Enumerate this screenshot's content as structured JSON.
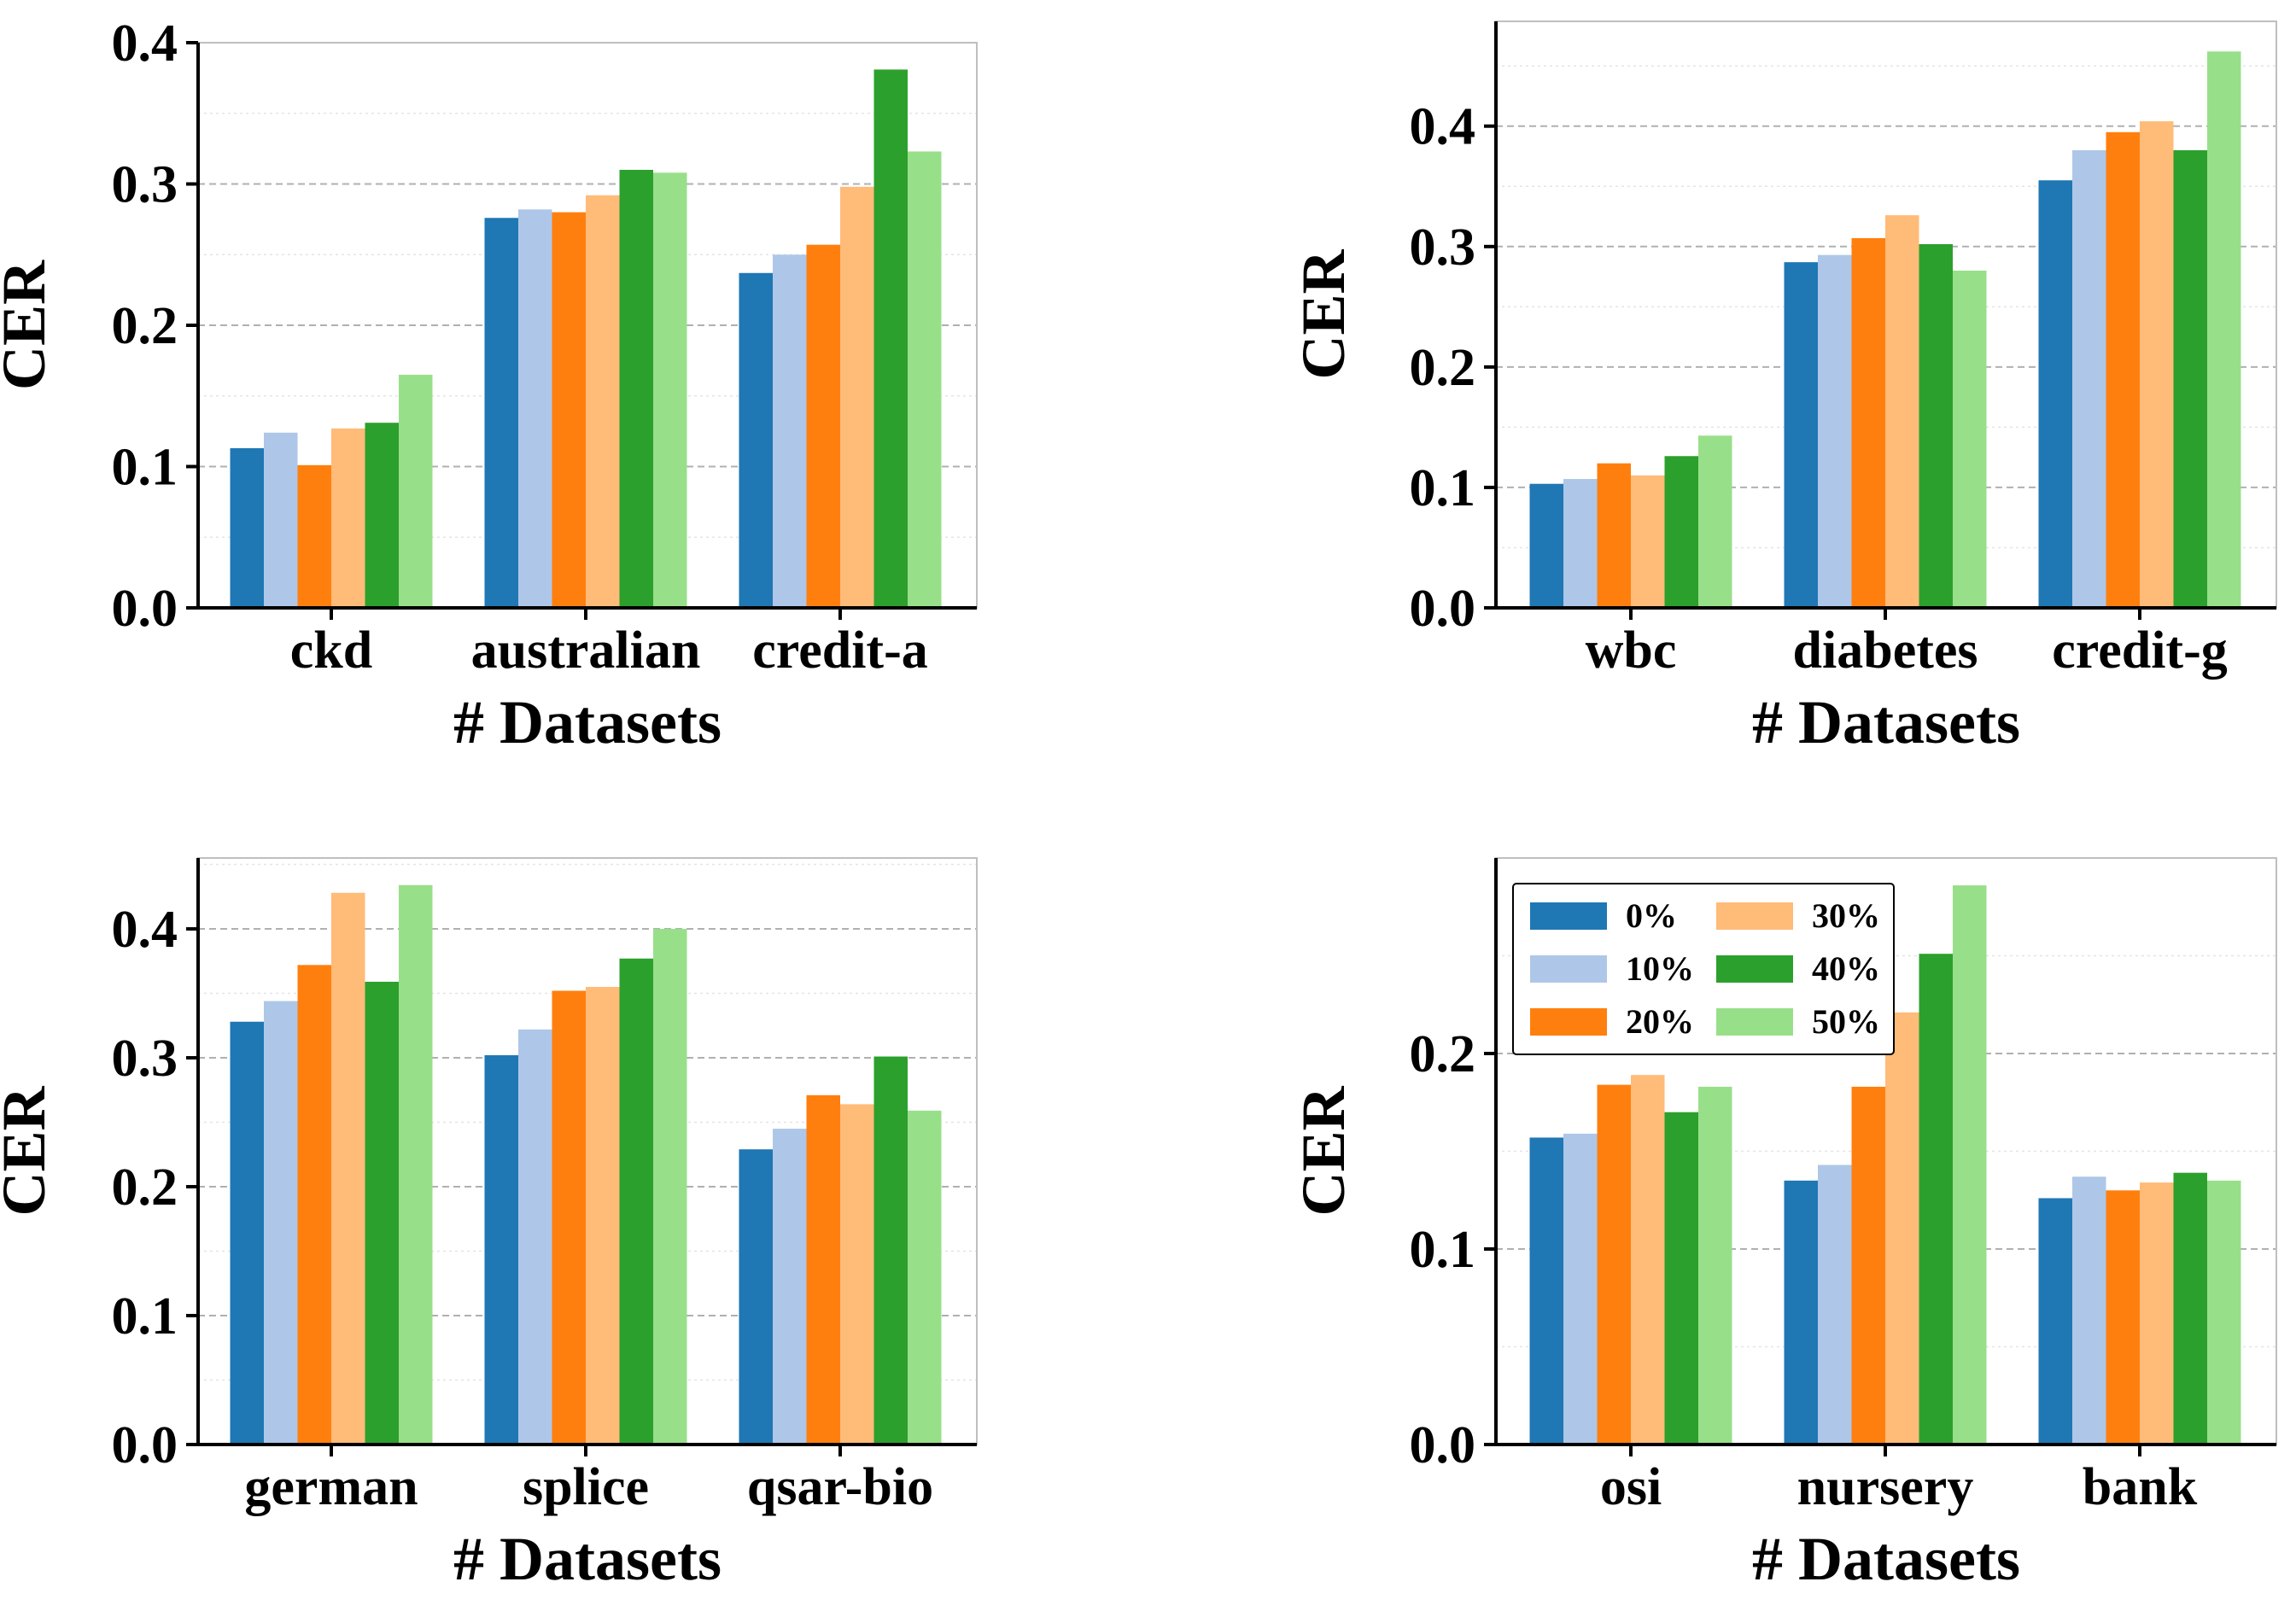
{
  "colors": {
    "0%": "#1f77b4",
    "10%": "#aec7e8",
    "20%": "#ff7f0e",
    "30%": "#ffbb78",
    "40%": "#2ca02c",
    "50%": "#98df8a",
    "grid_major": "#b0b0b0",
    "grid_minor": "#e4e4e4"
  },
  "chart_data": [
    {
      "type": "bar",
      "id": "top-left",
      "title": "",
      "xlabel": "# Datasets",
      "ylabel": "CER",
      "categories": [
        "ckd",
        "australian",
        "credit-a"
      ],
      "series": [
        {
          "name": "0%",
          "values": [
            0.113,
            0.276,
            0.237
          ]
        },
        {
          "name": "10%",
          "values": [
            0.124,
            0.282,
            0.25
          ]
        },
        {
          "name": "20%",
          "values": [
            0.101,
            0.28,
            0.257
          ]
        },
        {
          "name": "30%",
          "values": [
            0.127,
            0.292,
            0.298
          ]
        },
        {
          "name": "40%",
          "values": [
            0.131,
            0.31,
            0.381
          ]
        },
        {
          "name": "50%",
          "values": [
            0.165,
            0.308,
            0.323
          ]
        }
      ],
      "ylim": [
        0,
        0.4
      ],
      "yticks": [
        "0.0",
        "0.1",
        "0.2",
        "0.3",
        "0.4"
      ],
      "grid": true,
      "legend": false
    },
    {
      "type": "bar",
      "id": "top-right",
      "title": "",
      "xlabel": "# Datasets",
      "ylabel": "CER",
      "categories": [
        "wbc",
        "diabetes",
        "credit-g"
      ],
      "series": [
        {
          "name": "0%",
          "values": [
            0.103,
            0.287,
            0.355
          ]
        },
        {
          "name": "10%",
          "values": [
            0.107,
            0.293,
            0.38
          ]
        },
        {
          "name": "20%",
          "values": [
            0.12,
            0.307,
            0.395
          ]
        },
        {
          "name": "30%",
          "values": [
            0.11,
            0.326,
            0.404
          ]
        },
        {
          "name": "40%",
          "values": [
            0.126,
            0.302,
            0.38
          ]
        },
        {
          "name": "50%",
          "values": [
            0.143,
            0.28,
            0.462
          ]
        }
      ],
      "ylim": [
        0,
        0.487
      ],
      "yticks": [
        "0.0",
        "0.1",
        "0.2",
        "0.3",
        "0.4"
      ],
      "grid": true,
      "legend": false
    },
    {
      "type": "bar",
      "id": "bottom-left",
      "title": "",
      "xlabel": "# Datasets",
      "ylabel": "CER",
      "categories": [
        "german",
        "splice",
        "qsar-bio"
      ],
      "series": [
        {
          "name": "0%",
          "values": [
            0.328,
            0.302,
            0.229
          ]
        },
        {
          "name": "10%",
          "values": [
            0.344,
            0.322,
            0.245
          ]
        },
        {
          "name": "20%",
          "values": [
            0.372,
            0.352,
            0.271
          ]
        },
        {
          "name": "30%",
          "values": [
            0.428,
            0.355,
            0.264
          ]
        },
        {
          "name": "40%",
          "values": [
            0.359,
            0.377,
            0.301
          ]
        },
        {
          "name": "50%",
          "values": [
            0.434,
            0.4,
            0.259
          ]
        }
      ],
      "ylim": [
        0,
        0.455
      ],
      "yticks": [
        "0.0",
        "0.1",
        "0.2",
        "0.3",
        "0.4"
      ],
      "grid": true,
      "legend": false
    },
    {
      "type": "bar",
      "id": "bottom-right",
      "title": "",
      "xlabel": "# Datasets",
      "ylabel": "CER",
      "categories": [
        "osi",
        "nursery",
        "bank"
      ],
      "series": [
        {
          "name": "0%",
          "values": [
            0.157,
            0.135,
            0.126
          ]
        },
        {
          "name": "10%",
          "values": [
            0.159,
            0.143,
            0.137
          ]
        },
        {
          "name": "20%",
          "values": [
            0.184,
            0.183,
            0.13
          ]
        },
        {
          "name": "30%",
          "values": [
            0.189,
            0.221,
            0.134
          ]
        },
        {
          "name": "40%",
          "values": [
            0.17,
            0.251,
            0.139
          ]
        },
        {
          "name": "50%",
          "values": [
            0.183,
            0.286,
            0.135
          ]
        }
      ],
      "ylim": [
        0,
        0.3
      ],
      "yticks": [
        "0.0",
        "0.1",
        "0.2"
      ],
      "grid": true,
      "legend": true,
      "legend_position": "top-left",
      "legend_columns": [
        [
          "0%",
          "10%",
          "20%"
        ],
        [
          "30%",
          "40%",
          "50%"
        ]
      ]
    }
  ]
}
